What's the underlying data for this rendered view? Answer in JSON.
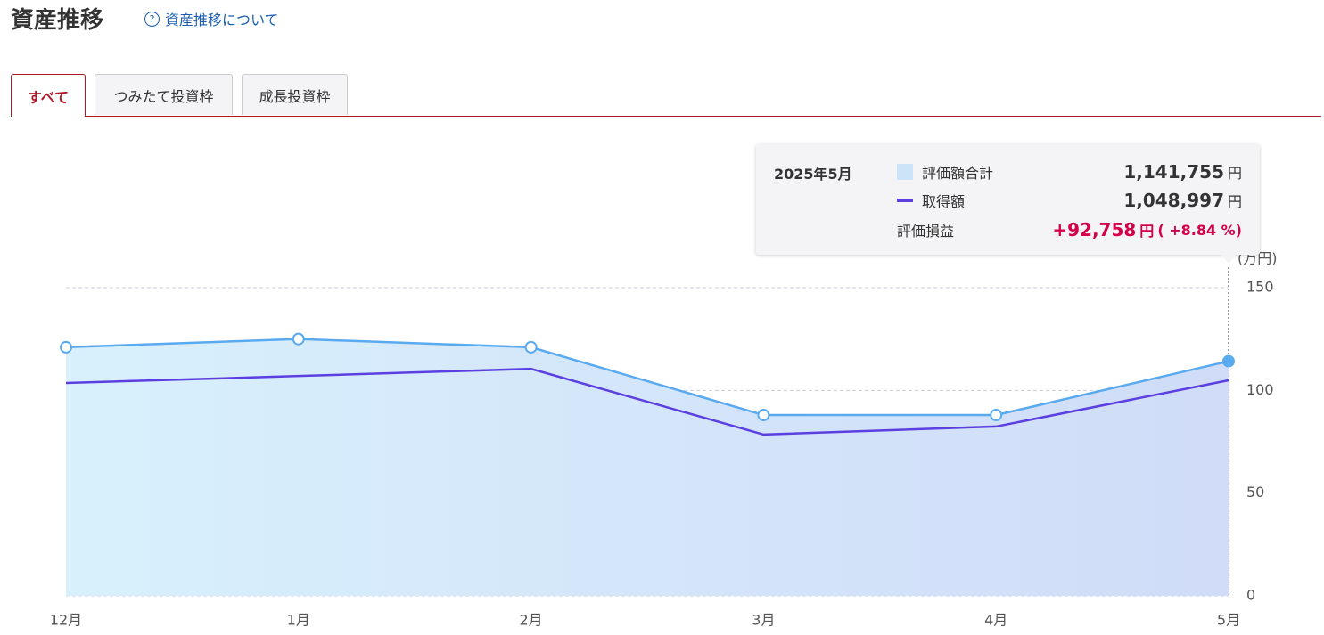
{
  "header": {
    "title": "資産推移",
    "help_link": "資産推移について"
  },
  "tabs": [
    "すべて",
    "つみたて投資枠",
    "成長投資枠"
  ],
  "tooltip": {
    "period": "2025年5月",
    "rows": [
      {
        "value": "1,141,755",
        "unit": "円"
      },
      {
        "value": "1,048,997",
        "unit": "円"
      },
      {
        "label": "評価損益",
        "value": "+92,758",
        "unit": "円",
        "rate": "( +8.84 %)"
      }
    ]
  },
  "chart_data": {
    "type": "area",
    "y_unit_label": "(万円)",
    "categories": [
      "12月",
      "1月",
      "2月",
      "3月",
      "4月",
      "5月"
    ],
    "series": [
      {
        "name": "評価額合計",
        "color": "#5aaaf0",
        "fill": true,
        "values": [
          121,
          125,
          121,
          88,
          88,
          114.2
        ]
      },
      {
        "name": "取得額",
        "color": "#5b3fe0",
        "fill": false,
        "values": [
          103.6,
          107,
          110.5,
          78.5,
          82.4,
          104.9
        ]
      }
    ],
    "ylim": [
      0,
      150
    ],
    "yticks": [
      0,
      50,
      100,
      150
    ],
    "grid": true
  }
}
